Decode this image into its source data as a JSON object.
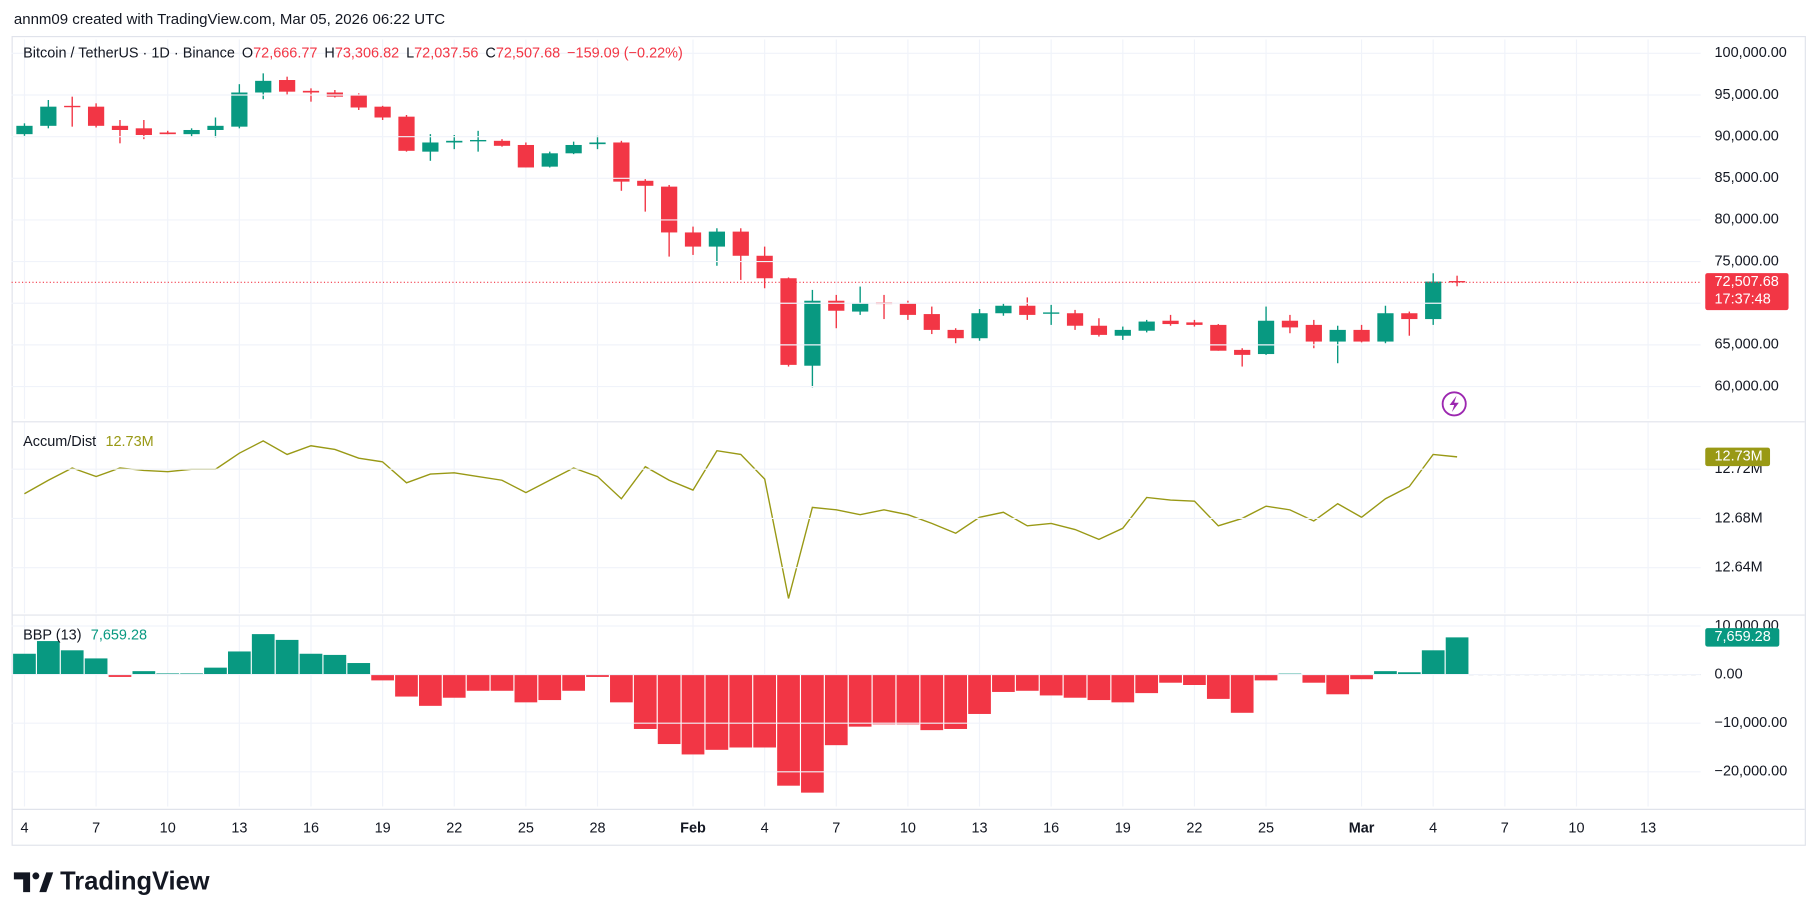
{
  "header": "annm09 created with TradingView.com, Mar 05, 2026 06:22 UTC",
  "footer": "TradingView",
  "chart_data": [
    {
      "type": "candlestick",
      "title": "Bitcoin / TetherUS · 1D · Binance",
      "legend": [
        {
          "key": "O",
          "value": "72,666.77"
        },
        {
          "key": "H",
          "value": "73,306.82"
        },
        {
          "key": "L",
          "value": "72,037.56"
        },
        {
          "key": "C",
          "value": "72,507.68"
        }
      ],
      "change": "−159.09 (−0.22%)",
      "last_price_label": "72,507.68",
      "countdown": "17:37:48",
      "up_color": "#089981",
      "down_color": "#f23645",
      "grid": true,
      "open": [
        90300,
        91300,
        93700,
        93600,
        91300,
        91000,
        90500,
        90300,
        90800,
        91200,
        95300,
        96800,
        95500,
        95300,
        95000,
        93600,
        92400,
        88200,
        89300,
        89500,
        89500,
        89000,
        86400,
        88000,
        89100,
        89300,
        84700,
        84000,
        78500,
        76800,
        78600,
        75700,
        73000,
        62500,
        70300,
        69000,
        70100,
        70000,
        68700,
        66800,
        65800,
        68800,
        69700,
        68800,
        68800,
        67300,
        66100,
        66700,
        67900,
        67700,
        67400,
        64400,
        63900,
        67900,
        67400,
        65400,
        66800,
        65400,
        68800,
        68100,
        72666.77
      ],
      "high": [
        91600,
        94400,
        94800,
        94000,
        92000,
        92000,
        90700,
        91000,
        92300,
        96300,
        97600,
        97200,
        95800,
        95600,
        95200,
        93700,
        92600,
        90300,
        90200,
        90700,
        89700,
        89300,
        88200,
        89400,
        90100,
        89500,
        84900,
        84200,
        79200,
        79000,
        79000,
        76800,
        73100,
        71600,
        71000,
        72000,
        71000,
        70300,
        69600,
        67000,
        69300,
        70000,
        70700,
        69800,
        69200,
        68200,
        67200,
        68000,
        68600,
        68000,
        67500,
        64600,
        69600,
        68600,
        68000,
        67300,
        67400,
        69700,
        69000,
        73600,
        73306.82
      ],
      "low": [
        90100,
        91000,
        91200,
        91100,
        89200,
        89700,
        90300,
        90000,
        89900,
        91000,
        94500,
        95000,
        94200,
        94700,
        93200,
        92000,
        88200,
        87100,
        88500,
        88200,
        88800,
        86300,
        86300,
        87900,
        88500,
        83500,
        81000,
        75600,
        75800,
        74500,
        72800,
        71800,
        62400,
        59900,
        67000,
        68600,
        68100,
        68000,
        66300,
        65200,
        65500,
        68500,
        68000,
        67400,
        66800,
        66000,
        65600,
        66500,
        67300,
        67200,
        64300,
        62400,
        63800,
        66400,
        64600,
        62800,
        65300,
        65200,
        66100,
        67400,
        72037.56
      ],
      "close": [
        91300,
        93600,
        93600,
        91300,
        90800,
        90200,
        90300,
        90800,
        91300,
        95300,
        96700,
        95400,
        95300,
        94800,
        93500,
        92300,
        88300,
        89300,
        89500,
        89600,
        88900,
        86300,
        88000,
        89000,
        89300,
        84600,
        84100,
        78500,
        76800,
        78600,
        75700,
        73000,
        62600,
        70300,
        69100,
        70000,
        69900,
        68600,
        66800,
        65800,
        68800,
        69700,
        68600,
        68900,
        67300,
        66200,
        66800,
        67800,
        67500,
        67400,
        64300,
        63800,
        67900,
        67100,
        65400,
        66800,
        65400,
        68800,
        68100,
        72600,
        72507.68
      ],
      "ylim": [
        56111,
        101667
      ],
      "yticks": [
        {
          "value": 60000,
          "label": "60,000.00"
        },
        {
          "value": 65000,
          "label": "65,000.00"
        },
        {
          "value": 70000,
          "label": "70,000.00"
        },
        {
          "value": 75000,
          "label": "75,000.00"
        },
        {
          "value": 80000,
          "label": "80,000.00"
        },
        {
          "value": 85000,
          "label": "85,000.00"
        },
        {
          "value": 90000,
          "label": "90,000.00"
        },
        {
          "value": 95000,
          "label": "95,000.00"
        },
        {
          "value": 100000,
          "label": "100,000.00"
        }
      ],
      "xlim": [
        -0.54,
        70.2
      ],
      "xticks": [
        {
          "value": 0,
          "label": "4"
        },
        {
          "value": 3,
          "label": "7"
        },
        {
          "value": 6,
          "label": "10"
        },
        {
          "value": 9,
          "label": "13"
        },
        {
          "value": 12,
          "label": "16"
        },
        {
          "value": 15,
          "label": "19"
        },
        {
          "value": 18,
          "label": "22"
        },
        {
          "value": 21,
          "label": "25"
        },
        {
          "value": 24,
          "label": "28"
        },
        {
          "value": 28,
          "label": "Feb"
        },
        {
          "value": 31,
          "label": "4"
        },
        {
          "value": 34,
          "label": "7"
        },
        {
          "value": 37,
          "label": "10"
        },
        {
          "value": 40,
          "label": "13"
        },
        {
          "value": 43,
          "label": "16"
        },
        {
          "value": 46,
          "label": "19"
        },
        {
          "value": 49,
          "label": "22"
        },
        {
          "value": 52,
          "label": "25"
        },
        {
          "value": 56,
          "label": "Mar"
        },
        {
          "value": 59,
          "label": "4"
        },
        {
          "value": 62,
          "label": "7"
        },
        {
          "value": 65,
          "label": "10"
        },
        {
          "value": 68,
          "label": "13"
        }
      ]
    },
    {
      "type": "line",
      "title": "Accum/Dist",
      "value_label": "12.73M",
      "color": "#999915",
      "values": [
        12.7,
        12.711,
        12.721,
        12.714,
        12.721,
        12.719,
        12.718,
        12.72,
        12.72,
        12.733,
        12.743,
        12.732,
        12.739,
        12.736,
        12.729,
        12.726,
        12.709,
        12.716,
        12.717,
        12.714,
        12.711,
        12.701,
        12.711,
        12.721,
        12.714,
        12.696,
        12.722,
        12.711,
        12.703,
        12.735,
        12.732,
        12.712,
        12.615,
        12.689,
        12.687,
        12.683,
        12.687,
        12.683,
        12.676,
        12.668,
        12.681,
        12.685,
        12.674,
        12.676,
        12.671,
        12.663,
        12.672,
        12.697,
        12.695,
        12.694,
        12.674,
        12.68,
        12.69,
        12.687,
        12.678,
        12.692,
        12.681,
        12.696,
        12.706,
        12.732,
        12.73
      ],
      "ylim": [
        12.603,
        12.758
      ],
      "yticks": [
        {
          "value": 12.64,
          "label": "12.64M"
        },
        {
          "value": 12.68,
          "label": "12.68M"
        },
        {
          "value": 12.72,
          "label": "12.72M"
        }
      ]
    },
    {
      "type": "histogram",
      "title": "BBP (13)",
      "value_label": "7,659.28",
      "up_color": "#089981",
      "down_color": "#f23645",
      "values": [
        4290,
        6900,
        5000,
        3330,
        -480,
        710,
        240,
        240,
        1430,
        4760,
        8330,
        7140,
        4290,
        4050,
        2380,
        -1190,
        -4520,
        -6430,
        -4760,
        -3330,
        -3330,
        -5710,
        -5240,
        -3330,
        -480,
        -5710,
        -11190,
        -14290,
        -16430,
        -15480,
        -15000,
        -15000,
        -22860,
        -24290,
        -14520,
        -10710,
        -10240,
        -10240,
        -11430,
        -11190,
        -8100,
        -3570,
        -3330,
        -4290,
        -4760,
        -5240,
        -5710,
        -3810,
        -1670,
        -2140,
        -5000,
        -7860,
        -1190,
        200,
        -1670,
        -4050,
        -950,
        710,
        480,
        5000,
        7659.28
      ],
      "ylim": [
        -27140,
        12140
      ],
      "yticks": [
        {
          "value": -20000,
          "label": "−20,000.00"
        },
        {
          "value": -10000,
          "label": "−10,000.00"
        },
        {
          "value": 0,
          "label": "0.00"
        },
        {
          "value": 10000,
          "label": "10,000.00"
        }
      ]
    }
  ]
}
